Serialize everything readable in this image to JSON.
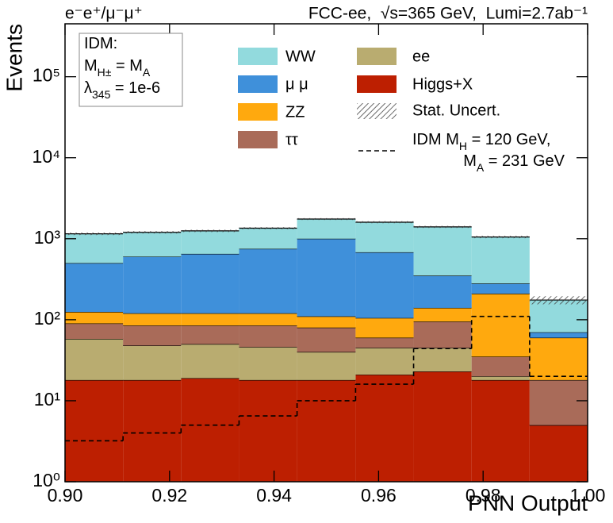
{
  "chart_data": {
    "type": "stacked_histogram",
    "header_left": "e⁻e⁺/μ⁻μ⁺",
    "header_right": "FCC-ee,  √s=365 GeV,  Lumi=2.7ab⁻¹",
    "xlabel": "PNN Output",
    "ylabel": "Events",
    "bins": [
      0.9,
      0.9111,
      0.9222,
      0.9333,
      0.9444,
      0.9556,
      0.9667,
      0.9778,
      0.9889,
      1.0
    ],
    "xlim": [
      0.9,
      1.0
    ],
    "xticks": [
      {
        "value": 0.9,
        "label": "0.90"
      },
      {
        "value": 0.92,
        "label": "0.92"
      },
      {
        "value": 0.94,
        "label": "0.94"
      },
      {
        "value": 0.96,
        "label": "0.96"
      },
      {
        "value": 0.98,
        "label": "0.98"
      },
      {
        "value": 1.0,
        "label": "1.00"
      }
    ],
    "ylim": [
      1,
      450000
    ],
    "log_y": true,
    "yticks": [
      {
        "value": 1,
        "label": "10⁰"
      },
      {
        "value": 10,
        "label": "10¹"
      },
      {
        "value": 100,
        "label": "10²"
      },
      {
        "value": 1000,
        "label": "10³"
      },
      {
        "value": 10000,
        "label": "10⁴"
      },
      {
        "value": 100000,
        "label": "10⁵"
      }
    ],
    "series": [
      {
        "name": "Higgs+X",
        "color": "#bd1f01",
        "values": [
          18,
          18,
          19,
          18,
          18,
          21,
          23,
          18,
          5
        ]
      },
      {
        "name": "ee",
        "color": "#b9ac70",
        "values": [
          40,
          30,
          31,
          28,
          22,
          24,
          22,
          2,
          0
        ]
      },
      {
        "name": "ττ",
        "color": "#a96b59",
        "values": [
          32,
          37,
          35,
          39,
          40,
          15,
          50,
          15,
          13
        ]
      },
      {
        "name": "ZZ",
        "color": "#ffa90e",
        "values": [
          35,
          35,
          35,
          35,
          30,
          45,
          45,
          175,
          42
        ]
      },
      {
        "name": "μ μ",
        "color": "#3f90da",
        "values": [
          375,
          480,
          530,
          630,
          890,
          575,
          210,
          70,
          10
        ]
      },
      {
        "name": "WW",
        "color": "#92dadd",
        "values": [
          650,
          600,
          600,
          600,
          750,
          920,
          1050,
          770,
          105
        ]
      }
    ],
    "uncertainty": {
      "name": "Stat. Uncert.",
      "values": [
        40,
        40,
        40,
        40,
        45,
        45,
        40,
        35,
        20
      ]
    },
    "signal": {
      "name": [
        [
          {
            "text": "IDM M"
          },
          {
            "text": "H",
            "sub": true
          },
          {
            "text": " = 120 GeV,"
          }
        ],
        [
          {
            "text": "M"
          },
          {
            "text": "A",
            "sub": true
          },
          {
            "text": " = 231 GeV"
          }
        ]
      ],
      "color": "#000000",
      "values": [
        3.2,
        4,
        5,
        6.5,
        10,
        16,
        44,
        110,
        20
      ]
    },
    "info_box": [
      [
        {
          "text": "IDM:"
        }
      ],
      [
        {
          "text": "M"
        },
        {
          "text": "H±",
          "sub": true
        },
        {
          "text": " = M"
        },
        {
          "text": "A",
          "sub": true
        }
      ],
      [
        {
          "text": "λ"
        },
        {
          "text": "345",
          "sub": true
        },
        {
          "text": " = 1e-6"
        }
      ]
    ]
  }
}
